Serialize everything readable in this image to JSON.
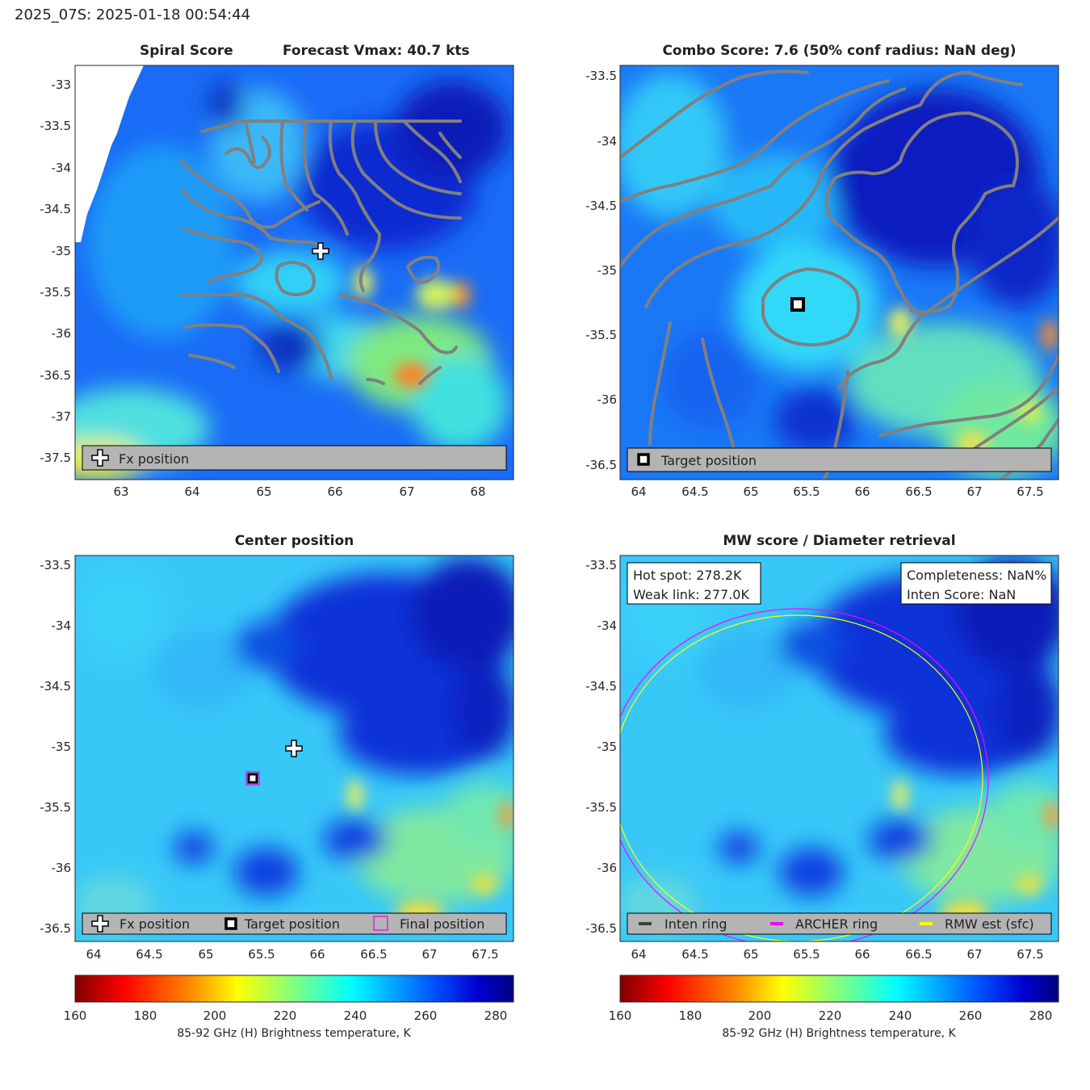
{
  "header": {
    "title": "2025_07S: 2025-01-18 00:54:44"
  },
  "colors": {
    "contour": "#808080",
    "legend_bg": "#b4b4b4",
    "inten_ring": "#404040",
    "archer_ring": "#ff00ff",
    "rmw_ring": "#ffff00"
  },
  "panels": {
    "spiral": {
      "title_left": "Spiral Score",
      "title_right": "Forecast Vmax: 40.7 kts",
      "xticks": [
        "63",
        "64",
        "65",
        "66",
        "67",
        "68"
      ],
      "yticks": [
        "-33",
        "-33.5",
        "-34",
        "-34.5",
        "-35",
        "-35.5",
        "-36",
        "-36.5",
        "-37",
        "-37.5"
      ],
      "legend": [
        "Fx position"
      ]
    },
    "combo": {
      "title": "Combo Score: 7.6  (50% conf radius: NaN deg)",
      "xticks": [
        "64",
        "64.5",
        "65",
        "65.5",
        "66",
        "66.5",
        "67",
        "67.5"
      ],
      "yticks": [
        "-33.5",
        "-34",
        "-34.5",
        "-35",
        "-35.5",
        "-36",
        "-36.5"
      ],
      "legend": [
        "Target position"
      ]
    },
    "center": {
      "title": "Center position",
      "xticks": [
        "64",
        "64.5",
        "65",
        "65.5",
        "66",
        "66.5",
        "67",
        "67.5"
      ],
      "yticks": [
        "-33.5",
        "-34",
        "-34.5",
        "-35",
        "-35.5",
        "-36",
        "-36.5"
      ],
      "legend": [
        "Fx position",
        "Target position",
        "Final position"
      ]
    },
    "mw": {
      "title": "MW score / Diameter retrieval",
      "xticks": [
        "64",
        "64.5",
        "65",
        "65.5",
        "66",
        "66.5",
        "67",
        "67.5"
      ],
      "yticks": [
        "-33.5",
        "-34",
        "-34.5",
        "-35",
        "-35.5",
        "-36",
        "-36.5"
      ],
      "info_left": [
        "Hot spot: 278.2K",
        "Weak link: 277.0K"
      ],
      "info_right": [
        "Completeness: NaN%",
        "Inten Score: NaN"
      ],
      "legend": [
        "Inten ring",
        "ARCHER ring",
        "RMW est (sfc)"
      ]
    }
  },
  "colorbar": {
    "label": "85-92 GHz (H) Brightness temperature, K",
    "ticks": [
      "160",
      "180",
      "200",
      "220",
      "240",
      "260",
      "280"
    ],
    "min": 160,
    "max": 285
  },
  "chart_data": [
    {
      "type": "heatmap",
      "name": "Spiral Score",
      "xlim": [
        62.35,
        68.5
      ],
      "ylim": [
        -37.8,
        -32.77
      ],
      "markers": [
        {
          "label": "Fx position",
          "lon": 65.8,
          "lat": -35.0
        }
      ]
    },
    {
      "type": "heatmap",
      "name": "Combo Score",
      "xlim": [
        63.85,
        67.75
      ],
      "ylim": [
        -36.6,
        -33.4
      ],
      "markers": [
        {
          "label": "Target position",
          "lon": 65.42,
          "lat": -35.27
        }
      ]
    },
    {
      "type": "heatmap",
      "name": "Center position",
      "xlim": [
        63.85,
        67.75
      ],
      "ylim": [
        -36.6,
        -33.4
      ],
      "markers": [
        {
          "label": "Fx position",
          "lon": 65.8,
          "lat": -35.01
        },
        {
          "label": "Target position",
          "lon": 65.42,
          "lat": -35.27
        },
        {
          "label": "Final position",
          "lon": 65.42,
          "lat": -35.27
        }
      ]
    },
    {
      "type": "heatmap",
      "name": "MW score / Diameter retrieval",
      "xlim": [
        63.85,
        67.75
      ],
      "ylim": [
        -36.6,
        -33.4
      ],
      "rings": [
        {
          "label": "ARCHER ring",
          "lon": 65.42,
          "lat": -35.27,
          "radius_deg": 1.6
        },
        {
          "label": "RMW est (sfc)",
          "lon": 65.42,
          "lat": -35.27,
          "radius_deg": 1.55
        }
      ]
    }
  ]
}
